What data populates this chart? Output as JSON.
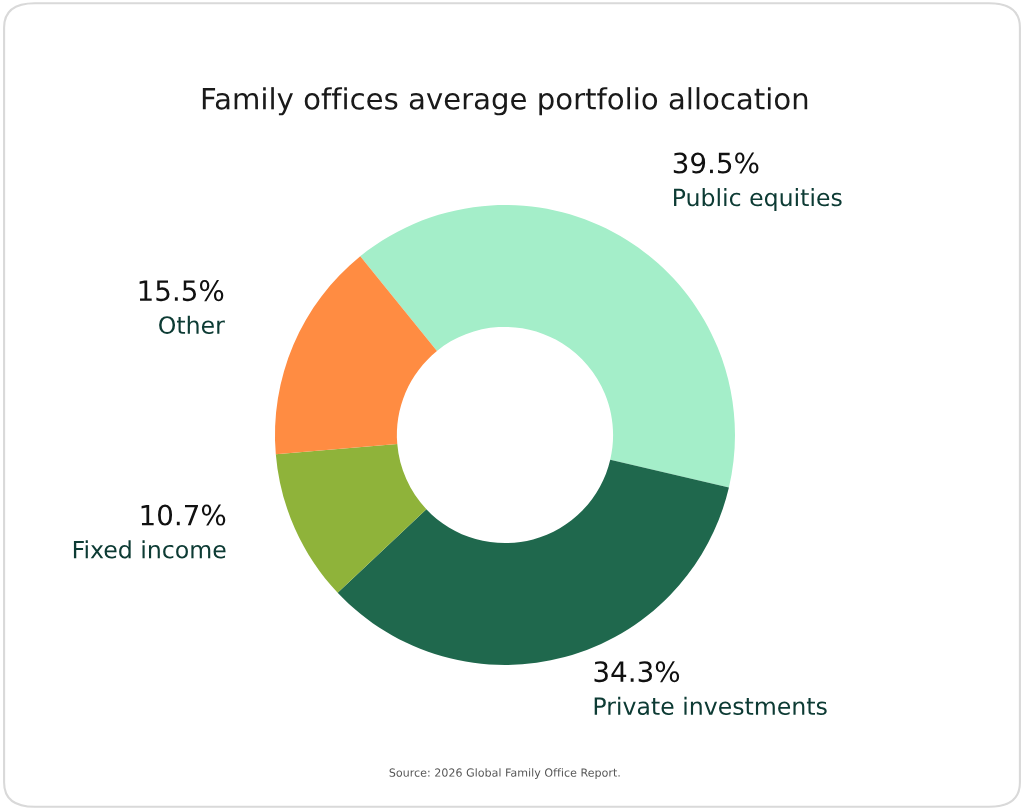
{
  "chart_data": {
    "type": "donut",
    "title": "Family offices average portfolio allocation",
    "categories": [
      "Public equities",
      "Private investments",
      "Fixed income",
      "Other"
    ],
    "values": [
      39.5,
      34.3,
      10.7,
      15.5
    ],
    "value_labels": [
      "39.5%",
      "34.3%",
      "10.7%",
      "15.5%"
    ],
    "colors": [
      "#a4eec9",
      "#1f684d",
      "#8fb33a",
      "#ff8c42"
    ],
    "legend": false,
    "annotations": [
      "Source: 2026 Global Family Office Report."
    ]
  }
}
